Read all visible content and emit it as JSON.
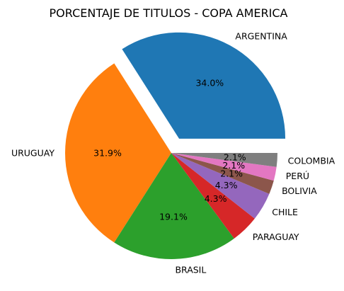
{
  "chart_data": {
    "type": "pie",
    "title": "PORCENTAJE DE TITULOS - COPA AMERICA",
    "explode": "ARGENTINA",
    "slices": [
      {
        "label": "ARGENTINA",
        "value": 34.0,
        "pct_label": "34.0%",
        "color": "#1f77b4"
      },
      {
        "label": "URUGUAY",
        "value": 31.9,
        "pct_label": "31.9%",
        "color": "#ff7f0e"
      },
      {
        "label": "BRASIL",
        "value": 19.1,
        "pct_label": "19.1%",
        "color": "#2ca02c"
      },
      {
        "label": "PARAGUAY",
        "value": 4.3,
        "pct_label": "4.3%",
        "color": "#d62728"
      },
      {
        "label": "CHILE",
        "value": 4.3,
        "pct_label": "4.3%",
        "color": "#9467bd"
      },
      {
        "label": "BOLIVIA",
        "value": 2.1,
        "pct_label": "2.1%",
        "color": "#8c564b"
      },
      {
        "label": "PERÚ",
        "value": 2.1,
        "pct_label": "2.1%",
        "color": "#e377c2"
      },
      {
        "label": "COLOMBIA",
        "value": 2.1,
        "pct_label": "2.1%",
        "color": "#7f7f7f"
      }
    ]
  }
}
